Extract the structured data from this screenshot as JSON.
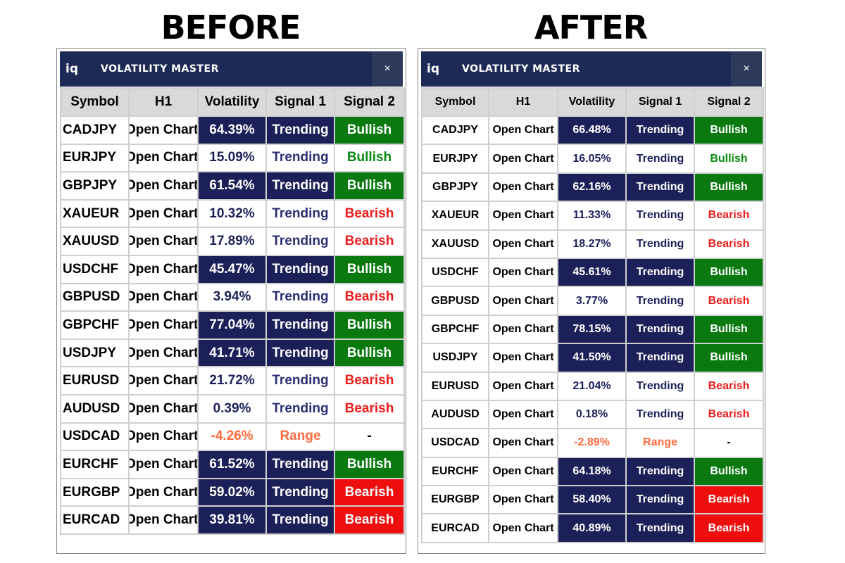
{
  "headings": {
    "before": "BEFORE",
    "after": "AFTER"
  },
  "panel": {
    "logo": "iq",
    "title": "VOLATILITY MASTER",
    "close": "×"
  },
  "columns": [
    "Symbol",
    "H1",
    "Volatility",
    "Signal 1",
    "Signal 2"
  ],
  "colors": {
    "dark_navy": "#1c2058",
    "bullish_green": "#0a7a10",
    "bearish_red": "#ee0e0e",
    "range_orange": "#ff6a3d",
    "titlebar": "#1c2a55"
  },
  "before": {
    "rows": [
      {
        "symbol": "CADJPY",
        "h1": "Open Chart",
        "volatility": "64.39%",
        "signal1": "Trending",
        "signal2": "Bullish",
        "vol_style": "dark",
        "sig1_style": "dark",
        "sig2_style": "bull"
      },
      {
        "symbol": "EURJPY",
        "h1": "Open Chart",
        "volatility": "15.09%",
        "signal1": "Trending",
        "signal2": "Bullish",
        "vol_style": "light",
        "sig1_style": "light",
        "sig2_style": "bull-light"
      },
      {
        "symbol": "GBPJPY",
        "h1": "Open Chart",
        "volatility": "61.54%",
        "signal1": "Trending",
        "signal2": "Bullish",
        "vol_style": "dark",
        "sig1_style": "dark",
        "sig2_style": "bull"
      },
      {
        "symbol": "XAUEUR",
        "h1": "Open Chart",
        "volatility": "10.32%",
        "signal1": "Trending",
        "signal2": "Bearish",
        "vol_style": "light",
        "sig1_style": "light",
        "sig2_style": "bear"
      },
      {
        "symbol": "XAUUSD",
        "h1": "Open Chart",
        "volatility": "17.89%",
        "signal1": "Trending",
        "signal2": "Bearish",
        "vol_style": "light",
        "sig1_style": "light",
        "sig2_style": "bear"
      },
      {
        "symbol": "USDCHF",
        "h1": "Open Chart",
        "volatility": "45.47%",
        "signal1": "Trending",
        "signal2": "Bullish",
        "vol_style": "dark",
        "sig1_style": "dark",
        "sig2_style": "bull"
      },
      {
        "symbol": "GBPUSD",
        "h1": "Open Chart",
        "volatility": "3.94%",
        "signal1": "Trending",
        "signal2": "Bearish",
        "vol_style": "light",
        "sig1_style": "light",
        "sig2_style": "bear"
      },
      {
        "symbol": "GBPCHF",
        "h1": "Open Chart",
        "volatility": "77.04%",
        "signal1": "Trending",
        "signal2": "Bullish",
        "vol_style": "dark",
        "sig1_style": "dark",
        "sig2_style": "bull"
      },
      {
        "symbol": "USDJPY",
        "h1": "Open Chart",
        "volatility": "41.71%",
        "signal1": "Trending",
        "signal2": "Bullish",
        "vol_style": "dark",
        "sig1_style": "dark",
        "sig2_style": "bull"
      },
      {
        "symbol": "EURUSD",
        "h1": "Open Chart",
        "volatility": "21.72%",
        "signal1": "Trending",
        "signal2": "Bearish",
        "vol_style": "light",
        "sig1_style": "light",
        "sig2_style": "bear"
      },
      {
        "symbol": "AUDUSD",
        "h1": "Open Chart",
        "volatility": "0.39%",
        "signal1": "Trending",
        "signal2": "Bearish",
        "vol_style": "light",
        "sig1_style": "light",
        "sig2_style": "bear"
      },
      {
        "symbol": "USDCAD",
        "h1": "Open Chart",
        "volatility": "-4.26%",
        "signal1": "Range",
        "signal2": "-",
        "vol_style": "range",
        "sig1_style": "range",
        "sig2_style": "neutral"
      },
      {
        "symbol": "EURCHF",
        "h1": "Open Chart",
        "volatility": "61.52%",
        "signal1": "Trending",
        "signal2": "Bullish",
        "vol_style": "dark",
        "sig1_style": "dark",
        "sig2_style": "bull"
      },
      {
        "symbol": "EURGBP",
        "h1": "Open Chart",
        "volatility": "59.02%",
        "signal1": "Trending",
        "signal2": "Bearish",
        "vol_style": "dark",
        "sig1_style": "dark",
        "sig2_style": "bear-strong"
      },
      {
        "symbol": "EURCAD",
        "h1": "Open Chart",
        "volatility": "39.81%",
        "signal1": "Trending",
        "signal2": "Bearish",
        "vol_style": "dark",
        "sig1_style": "dark",
        "sig2_style": "bear-strong"
      }
    ]
  },
  "after": {
    "rows": [
      {
        "symbol": "CADJPY",
        "h1": "Open Chart",
        "volatility": "66.48%",
        "signal1": "Trending",
        "signal2": "Bullish",
        "vol_style": "dark",
        "sig1_style": "dark",
        "sig2_style": "bull"
      },
      {
        "symbol": "EURJPY",
        "h1": "Open Chart",
        "volatility": "16.05%",
        "signal1": "Trending",
        "signal2": "Bullish",
        "vol_style": "light",
        "sig1_style": "light",
        "sig2_style": "bull-light"
      },
      {
        "symbol": "GBPJPY",
        "h1": "Open Chart",
        "volatility": "62.16%",
        "signal1": "Trending",
        "signal2": "Bullish",
        "vol_style": "dark",
        "sig1_style": "dark",
        "sig2_style": "bull"
      },
      {
        "symbol": "XAUEUR",
        "h1": "Open Chart",
        "volatility": "11.33%",
        "signal1": "Trending",
        "signal2": "Bearish",
        "vol_style": "light",
        "sig1_style": "light",
        "sig2_style": "bear"
      },
      {
        "symbol": "XAUUSD",
        "h1": "Open Chart",
        "volatility": "18.27%",
        "signal1": "Trending",
        "signal2": "Bearish",
        "vol_style": "light",
        "sig1_style": "light",
        "sig2_style": "bear"
      },
      {
        "symbol": "USDCHF",
        "h1": "Open Chart",
        "volatility": "45.61%",
        "signal1": "Trending",
        "signal2": "Bullish",
        "vol_style": "dark",
        "sig1_style": "dark",
        "sig2_style": "bull"
      },
      {
        "symbol": "GBPUSD",
        "h1": "Open Chart",
        "volatility": "3.77%",
        "signal1": "Trending",
        "signal2": "Bearish",
        "vol_style": "light",
        "sig1_style": "light",
        "sig2_style": "bear"
      },
      {
        "symbol": "GBPCHF",
        "h1": "Open Chart",
        "volatility": "78.15%",
        "signal1": "Trending",
        "signal2": "Bullish",
        "vol_style": "dark",
        "sig1_style": "dark",
        "sig2_style": "bull"
      },
      {
        "symbol": "USDJPY",
        "h1": "Open Chart",
        "volatility": "41.50%",
        "signal1": "Trending",
        "signal2": "Bullish",
        "vol_style": "dark",
        "sig1_style": "dark",
        "sig2_style": "bull"
      },
      {
        "symbol": "EURUSD",
        "h1": "Open Chart",
        "volatility": "21.04%",
        "signal1": "Trending",
        "signal2": "Bearish",
        "vol_style": "light",
        "sig1_style": "light",
        "sig2_style": "bear"
      },
      {
        "symbol": "AUDUSD",
        "h1": "Open Chart",
        "volatility": "0.18%",
        "signal1": "Trending",
        "signal2": "Bearish",
        "vol_style": "light",
        "sig1_style": "light",
        "sig2_style": "bear"
      },
      {
        "symbol": "USDCAD",
        "h1": "Open Chart",
        "volatility": "-2.89%",
        "signal1": "Range",
        "signal2": "-",
        "vol_style": "range",
        "sig1_style": "range",
        "sig2_style": "neutral"
      },
      {
        "symbol": "EURCHF",
        "h1": "Open Chart",
        "volatility": "64.18%",
        "signal1": "Trending",
        "signal2": "Bullish",
        "vol_style": "dark",
        "sig1_style": "dark",
        "sig2_style": "bull"
      },
      {
        "symbol": "EURGBP",
        "h1": "Open Chart",
        "volatility": "58.40%",
        "signal1": "Trending",
        "signal2": "Bearish",
        "vol_style": "dark",
        "sig1_style": "dark",
        "sig2_style": "bear-strong"
      },
      {
        "symbol": "EURCAD",
        "h1": "Open Chart",
        "volatility": "40.89%",
        "signal1": "Trending",
        "signal2": "Bearish",
        "vol_style": "dark",
        "sig1_style": "dark",
        "sig2_style": "bear-strong"
      }
    ]
  }
}
